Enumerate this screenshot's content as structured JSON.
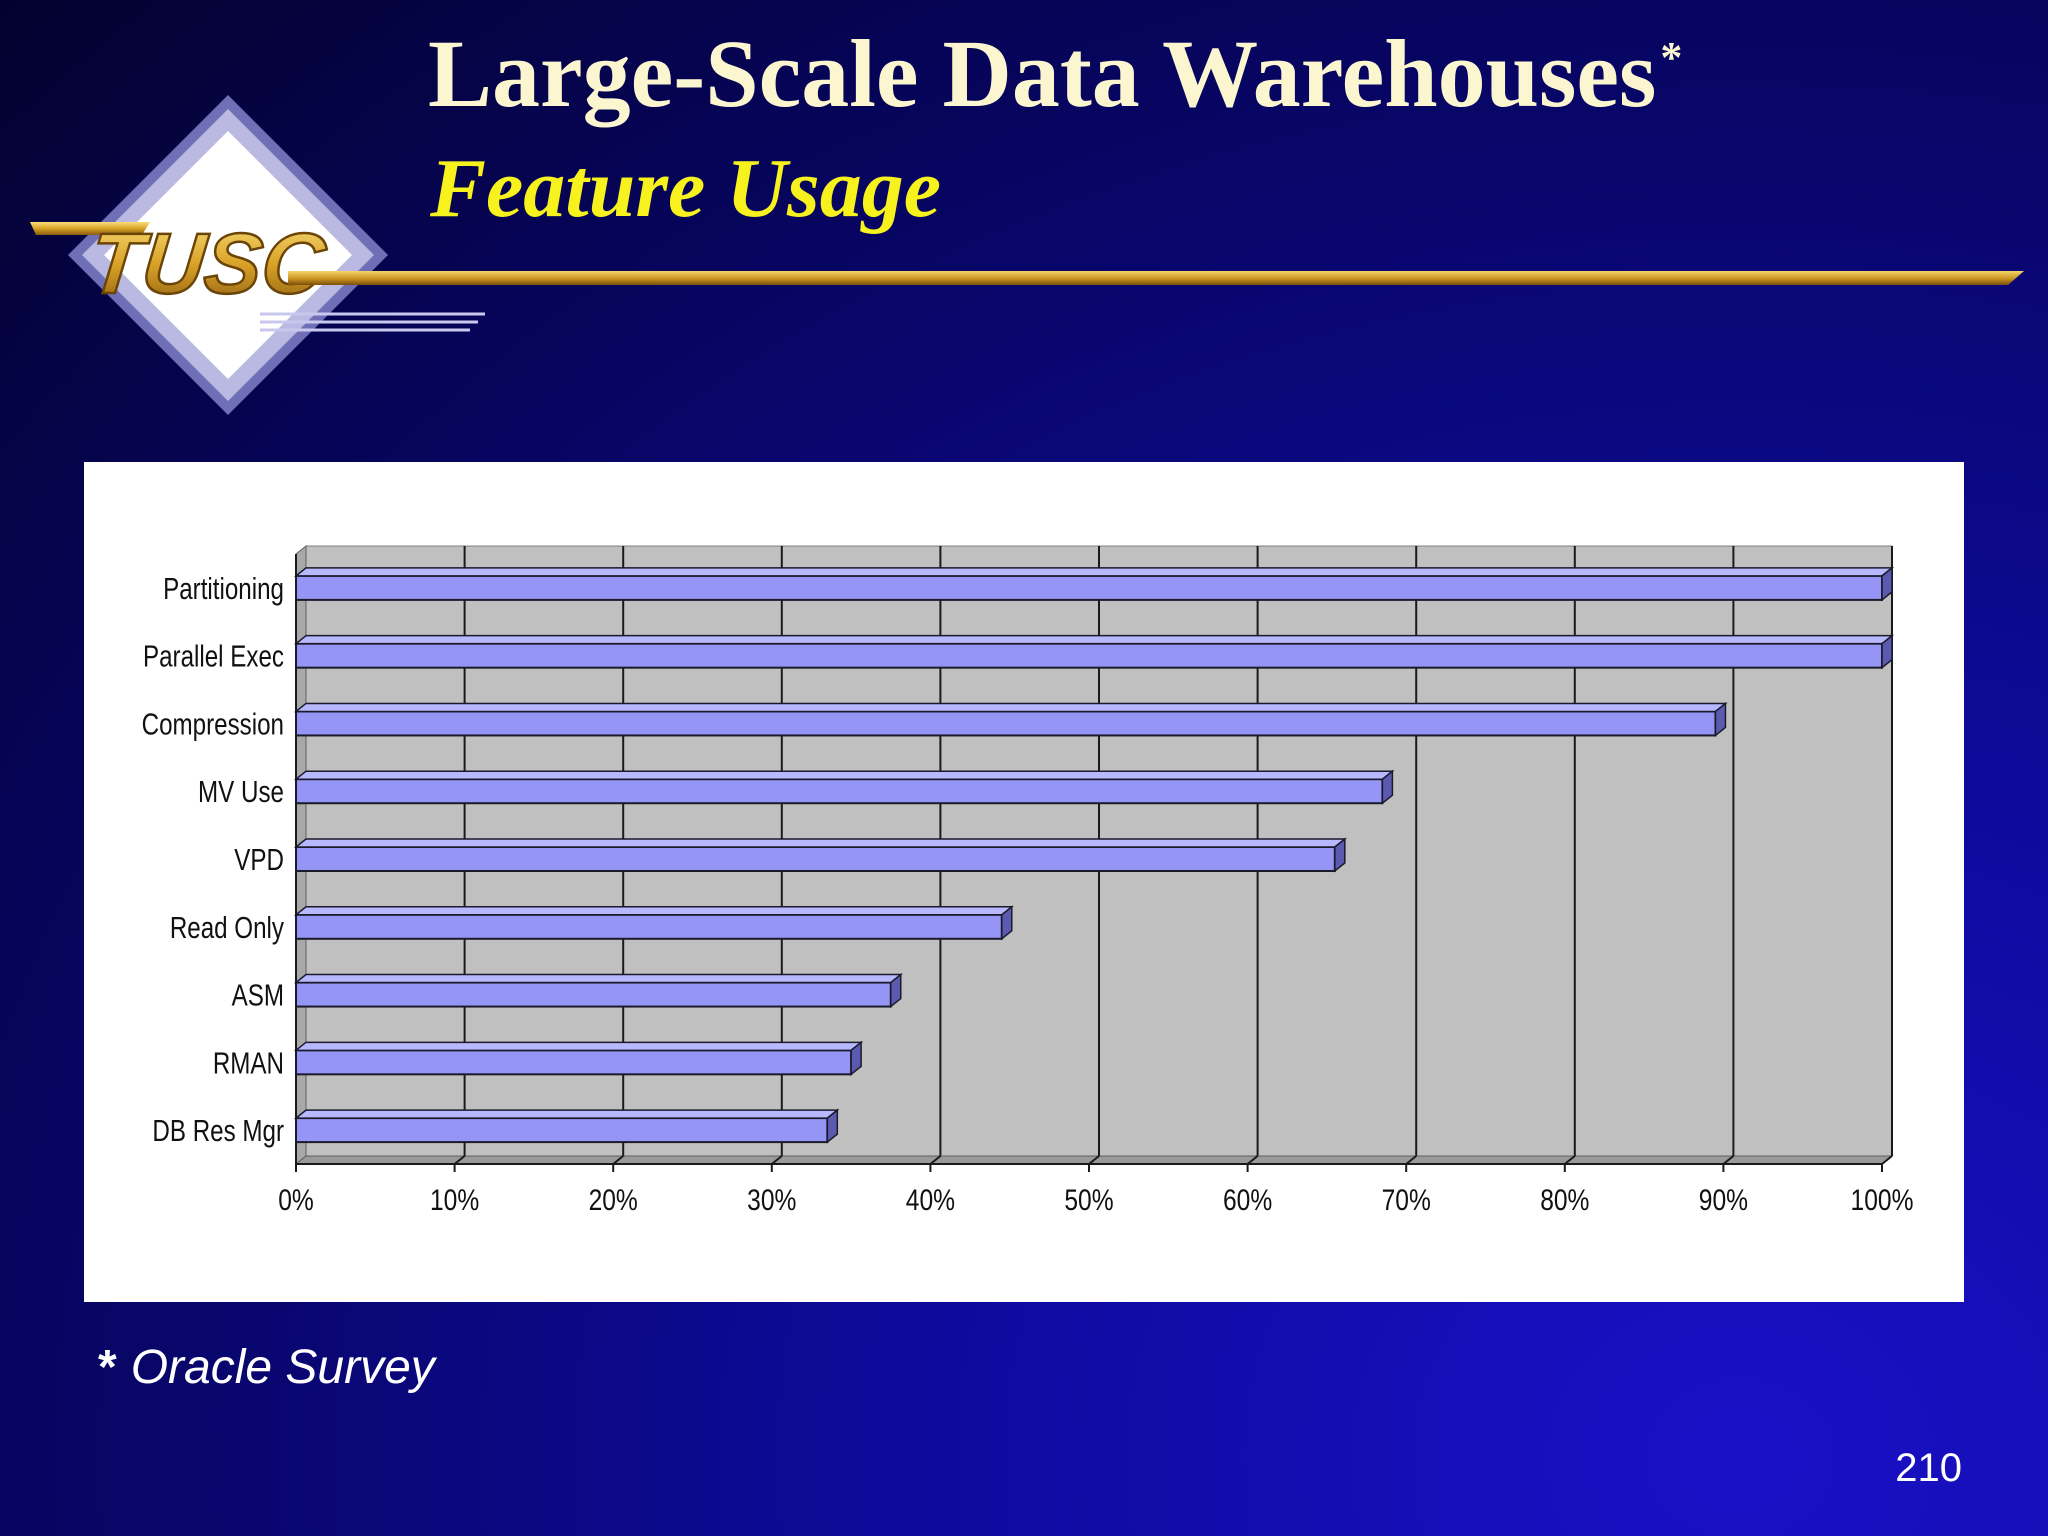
{
  "slide": {
    "title": "Large-Scale Data Warehouses",
    "title_marker": "*",
    "subtitle": "Feature Usage",
    "footnote_marker": "*",
    "footnote": "Oracle Survey",
    "page_number": "210",
    "logo_text": "TUSC"
  },
  "colors": {
    "title": "#fbf6cf",
    "subtitle": "#f7f11e",
    "gold": "#d9a227",
    "bar_fill": "#9595f5",
    "plot_background": "#c0c0c0"
  },
  "chart_data": {
    "type": "bar",
    "orientation": "horizontal",
    "categories": [
      "Partitioning",
      "Parallel Exec",
      "Compression",
      "MV Use",
      "VPD",
      "Read Only",
      "ASM",
      "RMAN",
      "DB Res Mgr"
    ],
    "values": [
      100,
      100,
      89.5,
      68.5,
      65.5,
      44.5,
      37.5,
      35,
      33.5
    ],
    "value_unit": "%",
    "xlim": [
      0,
      100
    ],
    "x_ticks": [
      "0%",
      "10%",
      "20%",
      "30%",
      "40%",
      "50%",
      "60%",
      "70%",
      "80%",
      "90%",
      "100%"
    ],
    "grid": true,
    "legend": "none",
    "style": "3d"
  }
}
